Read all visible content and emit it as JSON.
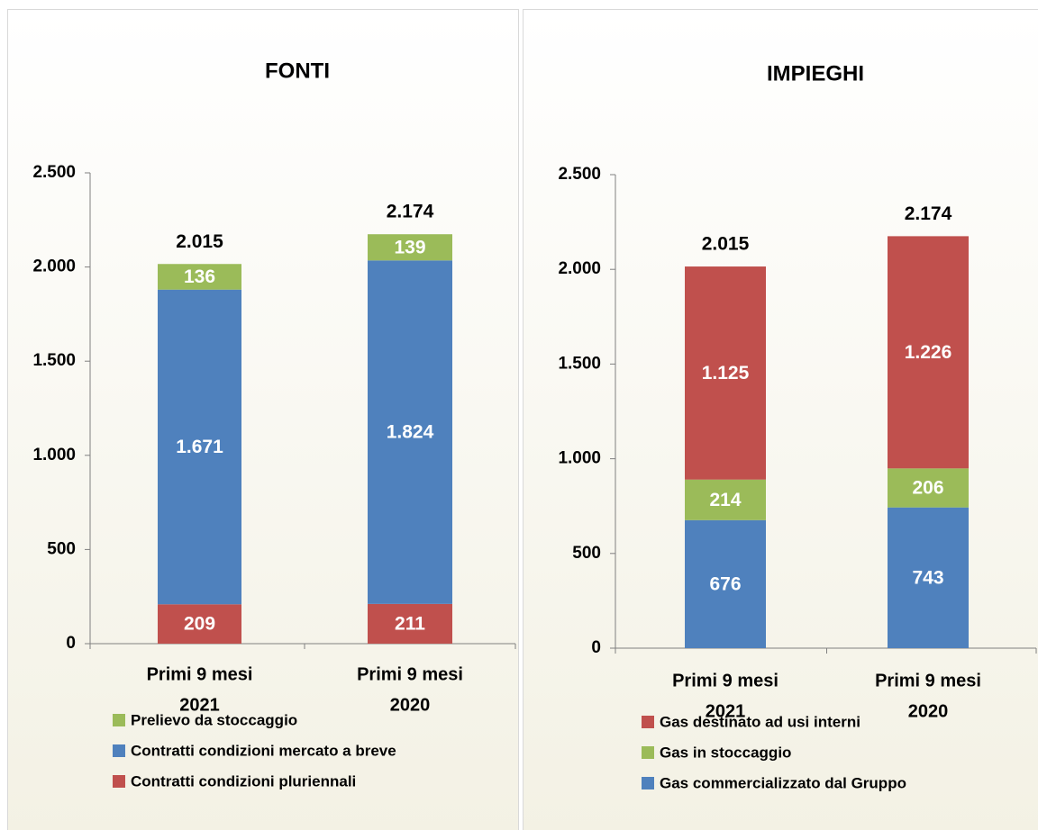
{
  "chart_data": [
    {
      "type": "stacked_bar",
      "title": "FONTI",
      "categories": [
        [
          "Primi 9 mesi",
          "2021"
        ],
        [
          "Primi 9 mesi",
          "2020"
        ]
      ],
      "series": [
        {
          "name": "Contratti condizioni pluriennali",
          "color": "#c0504d",
          "values": [
            209,
            211
          ],
          "value_labels": [
            "209",
            "211"
          ]
        },
        {
          "name": "Contratti condizioni mercato a breve",
          "color": "#4f81bd",
          "values": [
            1671,
            1824
          ],
          "value_labels": [
            "1.671",
            "1.824"
          ]
        },
        {
          "name": "Prelievo da stoccaggio",
          "color": "#9bbb59",
          "values": [
            136,
            139
          ],
          "value_labels": [
            "136",
            "139"
          ]
        }
      ],
      "totals": [
        {
          "value": 2015,
          "label": "2.015"
        },
        {
          "value": 2174,
          "label": "2.174"
        }
      ],
      "ylim": [
        0,
        2500
      ],
      "yticks": [
        0,
        500,
        {
          "value": 1000,
          "label": "1.000"
        },
        {
          "value": 1500,
          "label": "1.500"
        },
        {
          "value": 2000,
          "label": "2.000"
        },
        {
          "value": 2500,
          "label": "2.500"
        }
      ]
    },
    {
      "type": "stacked_bar",
      "title": "IMPIEGHI",
      "categories": [
        [
          "Primi 9 mesi",
          "2021"
        ],
        [
          "Primi 9 mesi",
          "2020"
        ]
      ],
      "series": [
        {
          "name": "Gas commercializzato dal Gruppo",
          "color": "#4f81bd",
          "values": [
            676,
            743
          ],
          "value_labels": [
            "676",
            "743"
          ]
        },
        {
          "name": "Gas in stoccaggio",
          "color": "#9bbb59",
          "values": [
            214,
            206
          ],
          "value_labels": [
            "214",
            "206"
          ]
        },
        {
          "name": "Gas destinato ad usi interni",
          "color": "#c0504d",
          "values": [
            1125,
            1226
          ],
          "value_labels": [
            "1.125",
            "1.226"
          ]
        }
      ],
      "totals": [
        {
          "value": 2015,
          "label": "2.015"
        },
        {
          "value": 2174,
          "label": "2.174"
        }
      ],
      "ylim": [
        0,
        2500
      ],
      "yticks": [
        0,
        500,
        {
          "value": 1000,
          "label": "1.000"
        },
        {
          "value": 1500,
          "label": "1.500"
        },
        {
          "value": 2000,
          "label": "2.000"
        },
        {
          "value": 2500,
          "label": "2.500"
        }
      ]
    }
  ]
}
